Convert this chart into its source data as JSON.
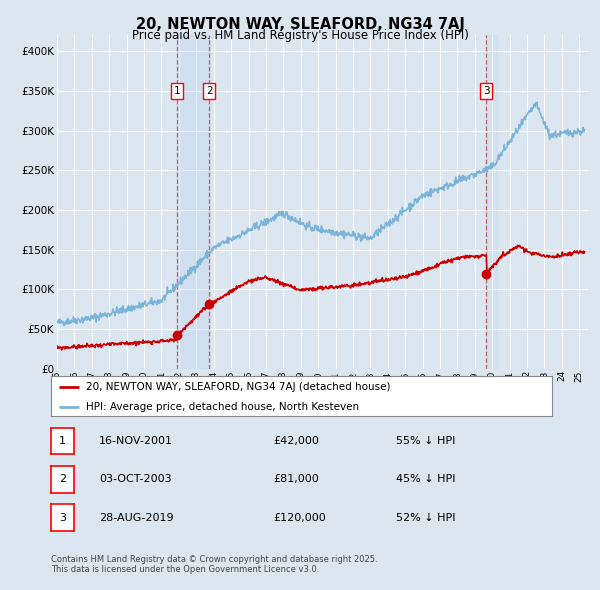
{
  "title": "20, NEWTON WAY, SLEAFORD, NG34 7AJ",
  "subtitle": "Price paid vs. HM Land Registry's House Price Index (HPI)",
  "background_color": "#dce6f0",
  "plot_bg_color": "#dce6f0",
  "grid_color": "#ffffff",
  "red_line_label": "20, NEWTON WAY, SLEAFORD, NG34 7AJ (detached house)",
  "blue_line_label": "HPI: Average price, detached house, North Kesteven",
  "footer": "Contains HM Land Registry data © Crown copyright and database right 2025.\nThis data is licensed under the Open Government Licence v3.0.",
  "transactions": [
    {
      "num": 1,
      "date": "16-NOV-2001",
      "price": 42000,
      "pct": "55% ↓ HPI",
      "year": 2001.88
    },
    {
      "num": 2,
      "date": "03-OCT-2003",
      "price": 81000,
      "pct": "45% ↓ HPI",
      "year": 2003.75
    },
    {
      "num": 3,
      "date": "28-AUG-2019",
      "price": 120000,
      "pct": "52% ↓ HPI",
      "year": 2019.66
    }
  ],
  "ylim": [
    0,
    420000
  ],
  "xlim_start": 1995,
  "xlim_end": 2025.5,
  "yticks": [
    0,
    50000,
    100000,
    150000,
    200000,
    250000,
    300000,
    350000,
    400000
  ],
  "ytick_labels": [
    "£0",
    "£50K",
    "£100K",
    "£150K",
    "£200K",
    "£250K",
    "£300K",
    "£350K",
    "£400K"
  ],
  "hpi_seed": 42,
  "red_seed": 99
}
